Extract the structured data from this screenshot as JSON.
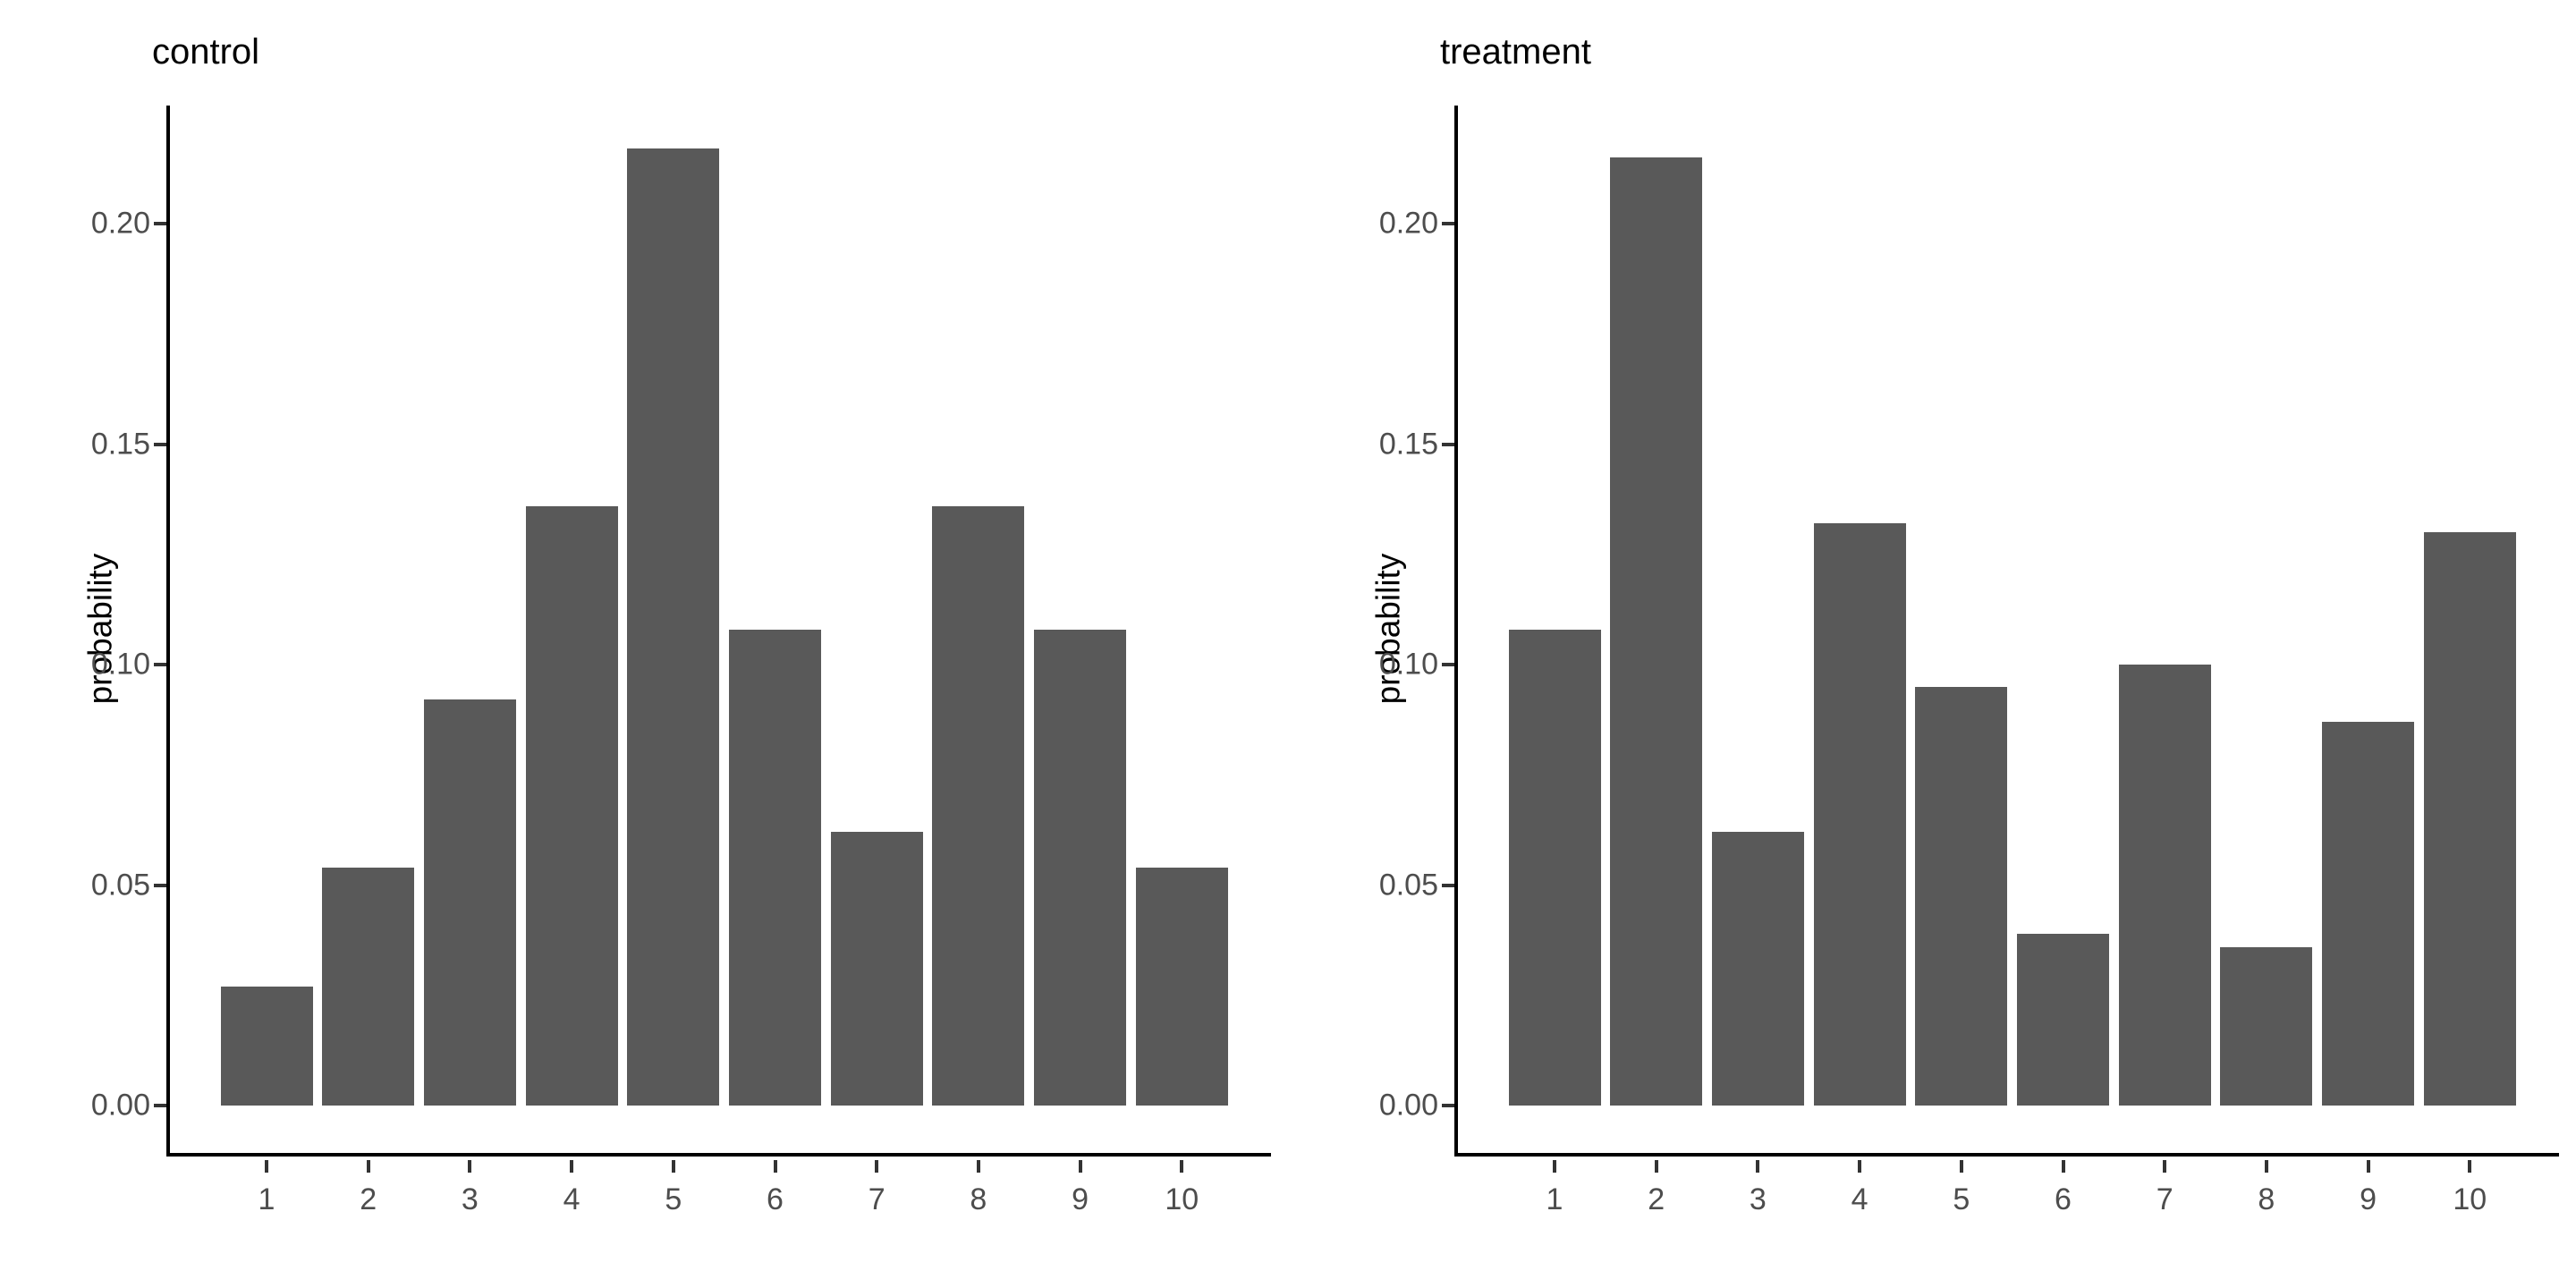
{
  "figure": {
    "background": "#ffffff",
    "bar_color": "#595959",
    "axis_line_color": "#000000",
    "tick_mark_color": "#333333",
    "tick_label_color": "#4d4d4d",
    "title_color": "#000000"
  },
  "chart_data": [
    {
      "type": "bar",
      "title": "control",
      "xlabel": "",
      "ylabel": "probability",
      "categories": [
        "1",
        "2",
        "3",
        "4",
        "5",
        "6",
        "7",
        "8",
        "9",
        "10"
      ],
      "values": [
        0.027,
        0.054,
        0.092,
        0.136,
        0.217,
        0.108,
        0.062,
        0.136,
        0.108,
        0.054
      ],
      "ylim": [
        0,
        0.227
      ],
      "yticks": [
        0.0,
        0.05,
        0.1,
        0.15,
        0.2
      ],
      "ytick_labels": [
        "0.00",
        "0.05",
        "0.10",
        "0.15",
        "0.20"
      ],
      "grid": false,
      "legend": "none",
      "bar_color": "#595959"
    },
    {
      "type": "bar",
      "title": "treatment",
      "xlabel": "",
      "ylabel": "probability",
      "categories": [
        "1",
        "2",
        "3",
        "4",
        "5",
        "6",
        "7",
        "8",
        "9",
        "10"
      ],
      "values": [
        0.108,
        0.215,
        0.062,
        0.132,
        0.095,
        0.039,
        0.1,
        0.036,
        0.087,
        0.13
      ],
      "ylim": [
        0,
        0.227
      ],
      "yticks": [
        0.0,
        0.05,
        0.1,
        0.15,
        0.2
      ],
      "ytick_labels": [
        "0.00",
        "0.05",
        "0.10",
        "0.15",
        "0.20"
      ],
      "grid": false,
      "legend": "none",
      "bar_color": "#595959"
    }
  ]
}
